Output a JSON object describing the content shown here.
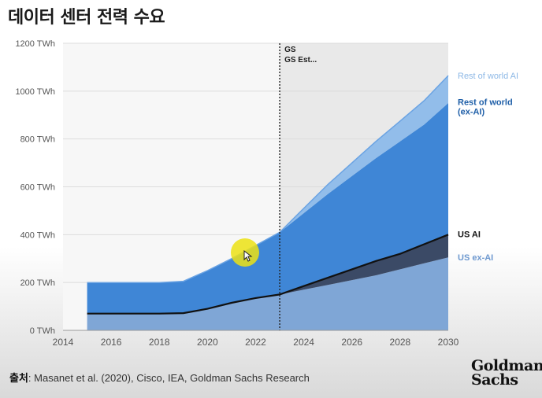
{
  "title": "데이터 센터 전력 수요",
  "source": {
    "label": "출처",
    "text": ": Masanet et al. (2020), Cisco, IEA, Goldman Sachs Research"
  },
  "logo": {
    "line1": "Goldman",
    "line2": "Sachs"
  },
  "chart_data": {
    "type": "area",
    "stacked": true,
    "title": "",
    "xlabel": "",
    "ylabel": "",
    "x": [
      2015,
      2016,
      2017,
      2018,
      2019,
      2020,
      2021,
      2022,
      2023,
      2024,
      2025,
      2026,
      2027,
      2028,
      2029,
      2030
    ],
    "xlim": [
      2014,
      2030
    ],
    "ylim": [
      0,
      1200
    ],
    "x_ticks": [
      2014,
      2016,
      2018,
      2020,
      2022,
      2024,
      2026,
      2028,
      2030
    ],
    "y_ticks": [
      {
        "value": 0,
        "label": "0 TWh"
      },
      {
        "value": 200,
        "label": "200 TWh"
      },
      {
        "value": 400,
        "label": "400 TWh"
      },
      {
        "value": 600,
        "label": "600 TWh"
      },
      {
        "value": 800,
        "label": "800 TWh"
      },
      {
        "value": 1000,
        "label": "1000 TWh"
      },
      {
        "value": 1200,
        "label": "1200 TWh"
      }
    ],
    "grid": true,
    "forecast_start": 2023,
    "forecast_labels": [
      "GS",
      "GS Est..."
    ],
    "series": [
      {
        "name": "US ex-AI",
        "color": "#7fa6d6",
        "values": [
          70,
          70,
          70,
          70,
          72,
          90,
          115,
          135,
          150,
          170,
          190,
          210,
          230,
          255,
          280,
          305
        ]
      },
      {
        "name": "US AI",
        "color": "#3b4a66",
        "values": [
          0,
          0,
          0,
          0,
          0,
          0,
          0,
          0,
          0,
          15,
          30,
          45,
          60,
          65,
          80,
          95
        ]
      },
      {
        "name": "Rest of world (ex-AI)",
        "color": "#3f86d6",
        "values": [
          130,
          130,
          130,
          130,
          133,
          160,
          185,
          220,
          260,
          305,
          350,
          390,
          430,
          470,
          500,
          550
        ]
      },
      {
        "name": "Rest of world AI",
        "color": "#92bdea",
        "values": [
          0,
          0,
          0,
          0,
          0,
          0,
          0,
          0,
          0,
          20,
          40,
          55,
          70,
          85,
          100,
          115
        ]
      }
    ],
    "us_total_line": {
      "values": [
        70,
        70,
        70,
        70,
        72,
        90,
        115,
        135,
        150,
        185,
        220,
        255,
        290,
        320,
        360,
        400
      ]
    },
    "legend_labels": [
      {
        "text": "Rest of world AI",
        "series": 3,
        "color": "#8db8e6"
      },
      {
        "text": "Rest of world\n(ex-AI)",
        "series": 2,
        "color": "#1f5fa8"
      },
      {
        "text": "US AI",
        "series": 1,
        "color": "#111111"
      },
      {
        "text": "US ex-AI",
        "series": 0,
        "color": "#6d98cf"
      }
    ]
  }
}
